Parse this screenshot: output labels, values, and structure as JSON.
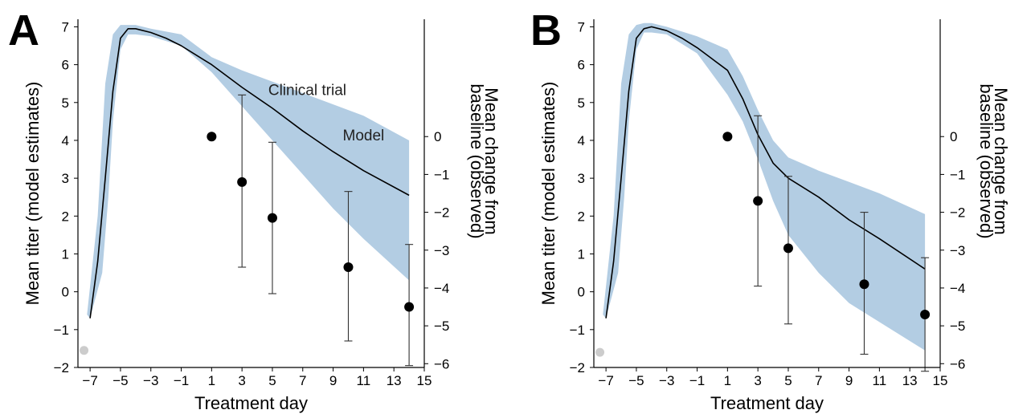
{
  "colors": {
    "band": "#b3cde3",
    "model_line": "#000000",
    "points": "#000000",
    "marker_gray": "#cccccc"
  },
  "chart_data": [
    {
      "panel_label": "A",
      "type": "line",
      "xlabel": "Treatment day",
      "ylabel_left": "Mean titer (model estimates)",
      "ylabel_right": "Mean change from baseline (observed)",
      "xlim": [
        -7.8,
        15
      ],
      "ylim_left": [
        -2,
        7.2
      ],
      "ylim_right": [
        -6.1,
        3.1
      ],
      "xticks": [
        -7,
        -5,
        -3,
        -1,
        1,
        3,
        5,
        7,
        9,
        11,
        13,
        15
      ],
      "yticks_left": [
        -2,
        -1,
        0,
        1,
        2,
        3,
        4,
        5,
        6,
        7
      ],
      "yticks_right": [
        0,
        -1,
        -2,
        -3,
        -4,
        -5,
        -6
      ],
      "annotations": [
        {
          "text": "Clinical trial",
          "x": 7.3,
          "y": 5.2
        },
        {
          "text": "Model",
          "x": 11.0,
          "y": 4.0
        }
      ],
      "gray_marker": {
        "x": -7.4,
        "y": -1.55
      },
      "model_mean": {
        "x": [
          -7,
          -6.5,
          -6,
          -5.5,
          -5,
          -4.5,
          -4,
          -3,
          -2,
          -1,
          0,
          1,
          3,
          5,
          7,
          9,
          11,
          14
        ],
        "y": [
          -0.7,
          0.8,
          3.0,
          5.3,
          6.7,
          6.95,
          6.95,
          6.85,
          6.7,
          6.5,
          6.25,
          6.0,
          5.4,
          4.85,
          4.25,
          3.7,
          3.2,
          2.55
        ]
      },
      "band_upper": {
        "x": [
          -7.2,
          -6.5,
          -6,
          -5.5,
          -5,
          -4.5,
          -4,
          -3,
          -1,
          1,
          3,
          5,
          7,
          9,
          11,
          14
        ],
        "y": [
          -0.6,
          2.0,
          5.5,
          6.8,
          7.05,
          7.05,
          7.05,
          6.95,
          6.8,
          6.2,
          5.85,
          5.55,
          5.25,
          4.95,
          4.65,
          4.0
        ]
      },
      "band_lower": {
        "x": [
          -7.0,
          -6.2,
          -5.8,
          -5.5,
          -5,
          -4.5,
          -4,
          -3,
          -1,
          1,
          3,
          5,
          7,
          9,
          11,
          14
        ],
        "y": [
          -0.7,
          0.5,
          2.5,
          4.5,
          6.4,
          6.8,
          6.8,
          6.75,
          6.5,
          5.8,
          4.9,
          4.0,
          3.1,
          2.2,
          1.4,
          0.3
        ]
      },
      "observed": {
        "x": [
          1,
          3,
          5,
          10,
          14
        ],
        "y": [
          0.0,
          -1.2,
          -2.15,
          -3.45,
          -4.5
        ],
        "err_low": [
          0.0,
          -3.45,
          -4.15,
          -5.4,
          -6.05
        ],
        "err_high": [
          0.0,
          1.1,
          -0.15,
          -1.45,
          -2.85
        ]
      }
    },
    {
      "panel_label": "B",
      "type": "line",
      "xlabel": "Treatment day",
      "ylabel_left": "Mean titer (model estimates)",
      "ylabel_right": "Mean change from baseline (observed)",
      "xlim": [
        -7.8,
        15
      ],
      "ylim_left": [
        -2,
        7.2
      ],
      "ylim_right": [
        -6.1,
        3.1
      ],
      "xticks": [
        -7,
        -5,
        -3,
        -1,
        1,
        3,
        5,
        7,
        9,
        11,
        13,
        15
      ],
      "yticks_left": [
        -2,
        -1,
        0,
        1,
        2,
        3,
        4,
        5,
        6,
        7
      ],
      "yticks_right": [
        0,
        -1,
        -2,
        -3,
        -4,
        -5,
        -6
      ],
      "annotations": [],
      "gray_marker": {
        "x": -7.4,
        "y": -1.6
      },
      "model_mean": {
        "x": [
          -7,
          -6.5,
          -6,
          -5.5,
          -5,
          -4.5,
          -4,
          -3,
          -2,
          -1,
          0,
          1,
          2,
          3,
          4,
          5,
          7,
          9,
          11,
          14
        ],
        "y": [
          -0.7,
          0.8,
          3.0,
          5.3,
          6.7,
          6.95,
          7.0,
          6.9,
          6.7,
          6.45,
          6.15,
          5.85,
          5.1,
          4.15,
          3.4,
          3.0,
          2.5,
          1.9,
          1.4,
          0.6
        ]
      },
      "band_upper": {
        "x": [
          -7.2,
          -6.5,
          -6,
          -5.5,
          -5,
          -4.5,
          -4,
          -3,
          -1,
          1,
          2,
          3,
          4,
          5,
          7,
          9,
          11,
          14
        ],
        "y": [
          -0.6,
          2.0,
          5.5,
          6.8,
          7.05,
          7.1,
          7.1,
          7.0,
          6.75,
          6.4,
          5.7,
          4.8,
          4.0,
          3.55,
          3.2,
          2.9,
          2.6,
          2.05
        ]
      },
      "band_lower": {
        "x": [
          -7.0,
          -6.2,
          -5.8,
          -5.5,
          -5,
          -4.5,
          -4,
          -3,
          -1,
          1,
          2,
          3,
          4,
          5,
          7,
          9,
          11,
          14
        ],
        "y": [
          -0.7,
          0.5,
          2.5,
          4.5,
          6.4,
          6.85,
          6.85,
          6.8,
          6.3,
          5.2,
          4.5,
          3.5,
          2.4,
          1.5,
          0.5,
          -0.3,
          -0.8,
          -1.55
        ]
      },
      "observed": {
        "x": [
          1,
          3,
          5,
          10,
          14
        ],
        "y": [
          0.0,
          -1.7,
          -2.95,
          -3.9,
          -4.7
        ],
        "err_low": [
          0.0,
          -3.95,
          -4.95,
          -5.75,
          -6.2
        ],
        "err_high": [
          0.0,
          0.55,
          -1.05,
          -2.0,
          -3.2
        ]
      }
    }
  ]
}
